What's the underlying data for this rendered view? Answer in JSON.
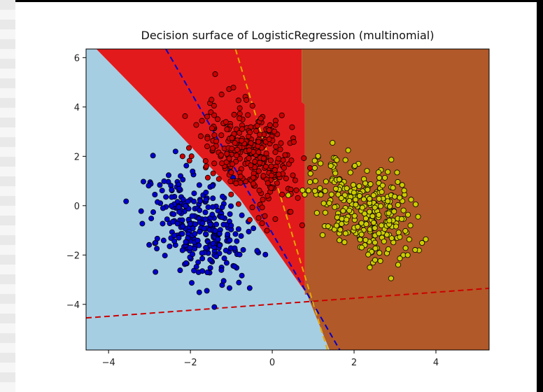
{
  "chart_data": {
    "type": "scatter",
    "title": "Decision surface of LogisticRegression (multinomial)",
    "xlabel": "",
    "ylabel": "",
    "xlim": [
      -4.55,
      5.3
    ],
    "ylim": [
      -5.85,
      6.35
    ],
    "x_ticks": [
      -4,
      -2,
      0,
      2,
      4
    ],
    "y_ticks": [
      -4,
      -2,
      0,
      2,
      4,
      6
    ],
    "x_tick_labels": [
      "−4",
      "−2",
      "0",
      "2",
      "4"
    ],
    "y_tick_labels": [
      "−4",
      "−2",
      "0",
      "2",
      "4",
      "6"
    ],
    "grid": false,
    "regions": [
      {
        "class": 0,
        "color": "#a6cee3",
        "polygon": [
          [
            -4.55,
            6.35
          ],
          [
            -4.3,
            6.35
          ],
          [
            -2.5,
            3.3
          ],
          [
            -0.8,
            0.3
          ],
          [
            0.85,
            -3.6
          ],
          [
            1.4,
            -5.85
          ],
          [
            -4.55,
            -5.85
          ]
        ]
      },
      {
        "class": 1,
        "color": "#e31a1c",
        "polygon": [
          [
            -4.3,
            6.35
          ],
          [
            0.72,
            6.35
          ],
          [
            0.72,
            4.2
          ],
          [
            0.8,
            4.1
          ],
          [
            0.8,
            -3.6
          ],
          [
            0.85,
            -3.6
          ],
          [
            -0.8,
            0.3
          ],
          [
            -2.5,
            3.3
          ]
        ]
      },
      {
        "class": 2,
        "color": "#b15928",
        "polygon": [
          [
            0.72,
            6.35
          ],
          [
            5.3,
            6.35
          ],
          [
            5.3,
            -5.85
          ],
          [
            1.4,
            -5.85
          ],
          [
            0.85,
            -3.6
          ],
          [
            0.8,
            -3.6
          ],
          [
            0.8,
            4.1
          ],
          [
            0.72,
            4.2
          ]
        ]
      }
    ],
    "series": [
      {
        "color": "#0000cc",
        "center": [
          -1.8,
          -0.8
        ],
        "spread": [
          0.55,
          1.1
        ],
        "count": 300,
        "seed": 11
      },
      {
        "color": "#cc0000",
        "center": [
          -0.6,
          2.1
        ],
        "spread": [
          0.55,
          1.05
        ],
        "count": 300,
        "seed": 23
      },
      {
        "color": "#cccc00",
        "center": [
          2.2,
          0.0
        ],
        "spread": [
          0.55,
          1.05
        ],
        "count": 300,
        "seed": 37
      }
    ],
    "hyperplanes": [
      {
        "color": "#0000cc",
        "points": [
          [
            -2.6,
            6.35
          ],
          [
            1.65,
            -5.85
          ]
        ]
      },
      {
        "color": "#cc0000",
        "points": [
          [
            -4.55,
            -4.55
          ],
          [
            5.3,
            -3.35
          ]
        ]
      },
      {
        "color": "#e8a800",
        "points": [
          [
            -0.9,
            6.35
          ],
          [
            1.35,
            -5.85
          ]
        ]
      }
    ]
  }
}
